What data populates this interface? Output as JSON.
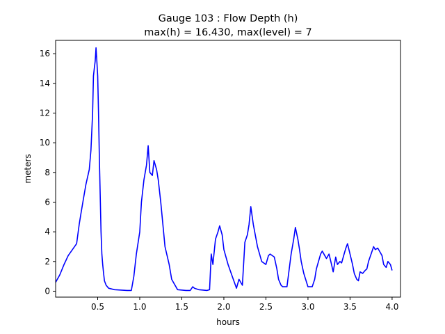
{
  "chart_data": {
    "type": "line",
    "title_line1": "Gauge 103 : Flow Depth (h)",
    "title_line2": "max(h) =  16.430,    max(level) = 7",
    "xlabel": "hours",
    "ylabel": "meters",
    "xlim": [
      0.0,
      4.1
    ],
    "ylim": [
      -0.4,
      16.9
    ],
    "xticks": [
      0.5,
      1.0,
      1.5,
      2.0,
      2.5,
      3.0,
      3.5,
      4.0
    ],
    "xtick_labels": [
      "0.5",
      "1.0",
      "1.5",
      "2.0",
      "2.5",
      "3.0",
      "3.5",
      "4.0"
    ],
    "yticks": [
      0,
      2,
      4,
      6,
      8,
      10,
      12,
      14,
      16
    ],
    "ytick_labels": [
      "0",
      "2",
      "4",
      "6",
      "8",
      "10",
      "12",
      "14",
      "16"
    ],
    "grid": false,
    "series": [
      {
        "color": "#0000ff",
        "x": [
          0.0,
          0.05,
          0.1,
          0.15,
          0.2,
          0.25,
          0.28,
          0.3,
          0.33,
          0.36,
          0.4,
          0.42,
          0.44,
          0.45,
          0.46,
          0.47,
          0.48,
          0.49,
          0.5,
          0.51,
          0.52,
          0.53,
          0.54,
          0.55,
          0.56,
          0.57,
          0.58,
          0.6,
          0.63,
          0.7,
          0.85,
          0.9,
          0.93,
          0.96,
          1.0,
          1.02,
          1.05,
          1.08,
          1.1,
          1.12,
          1.15,
          1.17,
          1.2,
          1.22,
          1.25,
          1.3,
          1.35,
          1.38,
          1.45,
          1.55,
          1.6,
          1.63,
          1.65,
          1.7,
          1.8,
          1.83,
          1.85,
          1.87,
          1.9,
          1.93,
          1.95,
          1.98,
          2.0,
          2.05,
          2.1,
          2.15,
          2.18,
          2.22,
          2.25,
          2.28,
          2.3,
          2.32,
          2.35,
          2.38,
          2.4,
          2.45,
          2.5,
          2.53,
          2.55,
          2.6,
          2.63,
          2.65,
          2.68,
          2.7,
          2.75,
          2.8,
          2.83,
          2.85,
          2.88,
          2.9,
          2.92,
          2.95,
          3.0,
          3.05,
          3.08,
          3.1,
          3.15,
          3.17,
          3.2,
          3.22,
          3.25,
          3.28,
          3.3,
          3.33,
          3.35,
          3.38,
          3.4,
          3.43,
          3.45,
          3.47,
          3.5,
          3.53,
          3.55,
          3.58,
          3.6,
          3.62,
          3.65,
          3.68,
          3.7,
          3.72,
          3.75,
          3.78,
          3.8,
          3.83,
          3.85,
          3.88,
          3.9,
          3.93,
          3.95,
          3.98,
          4.0
        ],
        "y": [
          0.6,
          1.1,
          1.8,
          2.4,
          2.8,
          3.2,
          4.5,
          5.2,
          6.2,
          7.2,
          8.2,
          9.5,
          12.0,
          14.5,
          15.0,
          15.5,
          16.4,
          15.5,
          14.5,
          12.0,
          9.0,
          6.5,
          4.0,
          2.5,
          1.8,
          1.2,
          0.7,
          0.4,
          0.2,
          0.1,
          0.05,
          0.05,
          1.0,
          2.5,
          4.0,
          6.0,
          7.5,
          8.5,
          9.8,
          8.0,
          7.8,
          8.8,
          8.2,
          7.5,
          6.0,
          3.0,
          1.8,
          0.8,
          0.1,
          0.05,
          0.05,
          0.3,
          0.2,
          0.1,
          0.05,
          0.1,
          2.5,
          1.8,
          3.5,
          4.0,
          4.4,
          3.8,
          2.8,
          1.8,
          1.0,
          0.2,
          0.8,
          0.4,
          3.3,
          3.8,
          4.5,
          5.7,
          4.5,
          3.6,
          3.0,
          2.0,
          1.8,
          2.4,
          2.5,
          2.3,
          1.5,
          0.8,
          0.4,
          0.3,
          0.3,
          2.5,
          3.5,
          4.3,
          3.5,
          2.8,
          2.0,
          1.2,
          0.3,
          0.3,
          0.8,
          1.5,
          2.5,
          2.7,
          2.4,
          2.2,
          2.5,
          1.8,
          1.3,
          2.3,
          1.8,
          2.0,
          1.9,
          2.5,
          2.9,
          3.2,
          2.5,
          1.8,
          1.2,
          0.8,
          0.7,
          1.3,
          1.2,
          1.4,
          1.5,
          2.0,
          2.5,
          3.0,
          2.8,
          2.9,
          2.7,
          2.4,
          1.8,
          1.6,
          2.0,
          1.8,
          1.4
        ]
      }
    ]
  }
}
